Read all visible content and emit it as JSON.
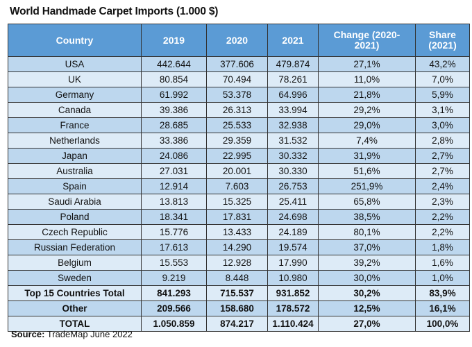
{
  "title": "World Handmade Carpet Imports (1.000 $)",
  "headers": [
    "Country",
    "2019",
    "2020",
    "2021",
    "Change (2020-2021)",
    "Share (2021)"
  ],
  "rows": [
    [
      "USA",
      "442.644",
      "377.606",
      "479.874",
      "27,1%",
      "43,2%"
    ],
    [
      "UK",
      "80.854",
      "70.494",
      "78.261",
      "11,0%",
      "7,0%"
    ],
    [
      "Germany",
      "61.992",
      "53.378",
      "64.996",
      "21,8%",
      "5,9%"
    ],
    [
      "Canada",
      "39.386",
      "26.313",
      "33.994",
      "29,2%",
      "3,1%"
    ],
    [
      "France",
      "28.685",
      "25.533",
      "32.938",
      "29,0%",
      "3,0%"
    ],
    [
      "Netherlands",
      "33.386",
      "29.359",
      "31.532",
      "7,4%",
      "2,8%"
    ],
    [
      "Japan",
      "24.086",
      "22.995",
      "30.332",
      "31,9%",
      "2,7%"
    ],
    [
      "Australia",
      "27.031",
      "20.001",
      "30.330",
      "51,6%",
      "2,7%"
    ],
    [
      "Spain",
      "12.914",
      "7.603",
      "26.753",
      "251,9%",
      "2,4%"
    ],
    [
      "Saudi Arabia",
      "13.813",
      "15.325",
      "25.411",
      "65,8%",
      "2,3%"
    ],
    [
      "Poland",
      "18.341",
      "17.831",
      "24.698",
      "38,5%",
      "2,2%"
    ],
    [
      "Czech Republic",
      "15.776",
      "13.433",
      "24.189",
      "80,1%",
      "2,2%"
    ],
    [
      "Russian Federation",
      "17.613",
      "14.290",
      "19.574",
      "37,0%",
      "1,8%"
    ],
    [
      "Belgium",
      "15.553",
      "12.928",
      "17.990",
      "39,2%",
      "1,6%"
    ],
    [
      "Sweden",
      "9.219",
      "8.448",
      "10.980",
      "30,0%",
      "1,0%"
    ]
  ],
  "totals": [
    [
      "Top 15 Countries Total",
      "841.293",
      "715.537",
      "931.852",
      "30,2%",
      "83,9%"
    ],
    [
      "Other",
      "209.566",
      "158.680",
      "178.572",
      "12,5%",
      "16,1%"
    ],
    [
      "TOTAL",
      "1.050.859",
      "874.217",
      "1.110.424",
      "27,0%",
      "100,0%"
    ]
  ],
  "source": {
    "label": "Source:",
    "text": " TradeMap June 2022"
  },
  "colors": {
    "header": "#5b9bd5",
    "row_dark": "#bdd7ee",
    "row_light": "#ddebf7"
  }
}
